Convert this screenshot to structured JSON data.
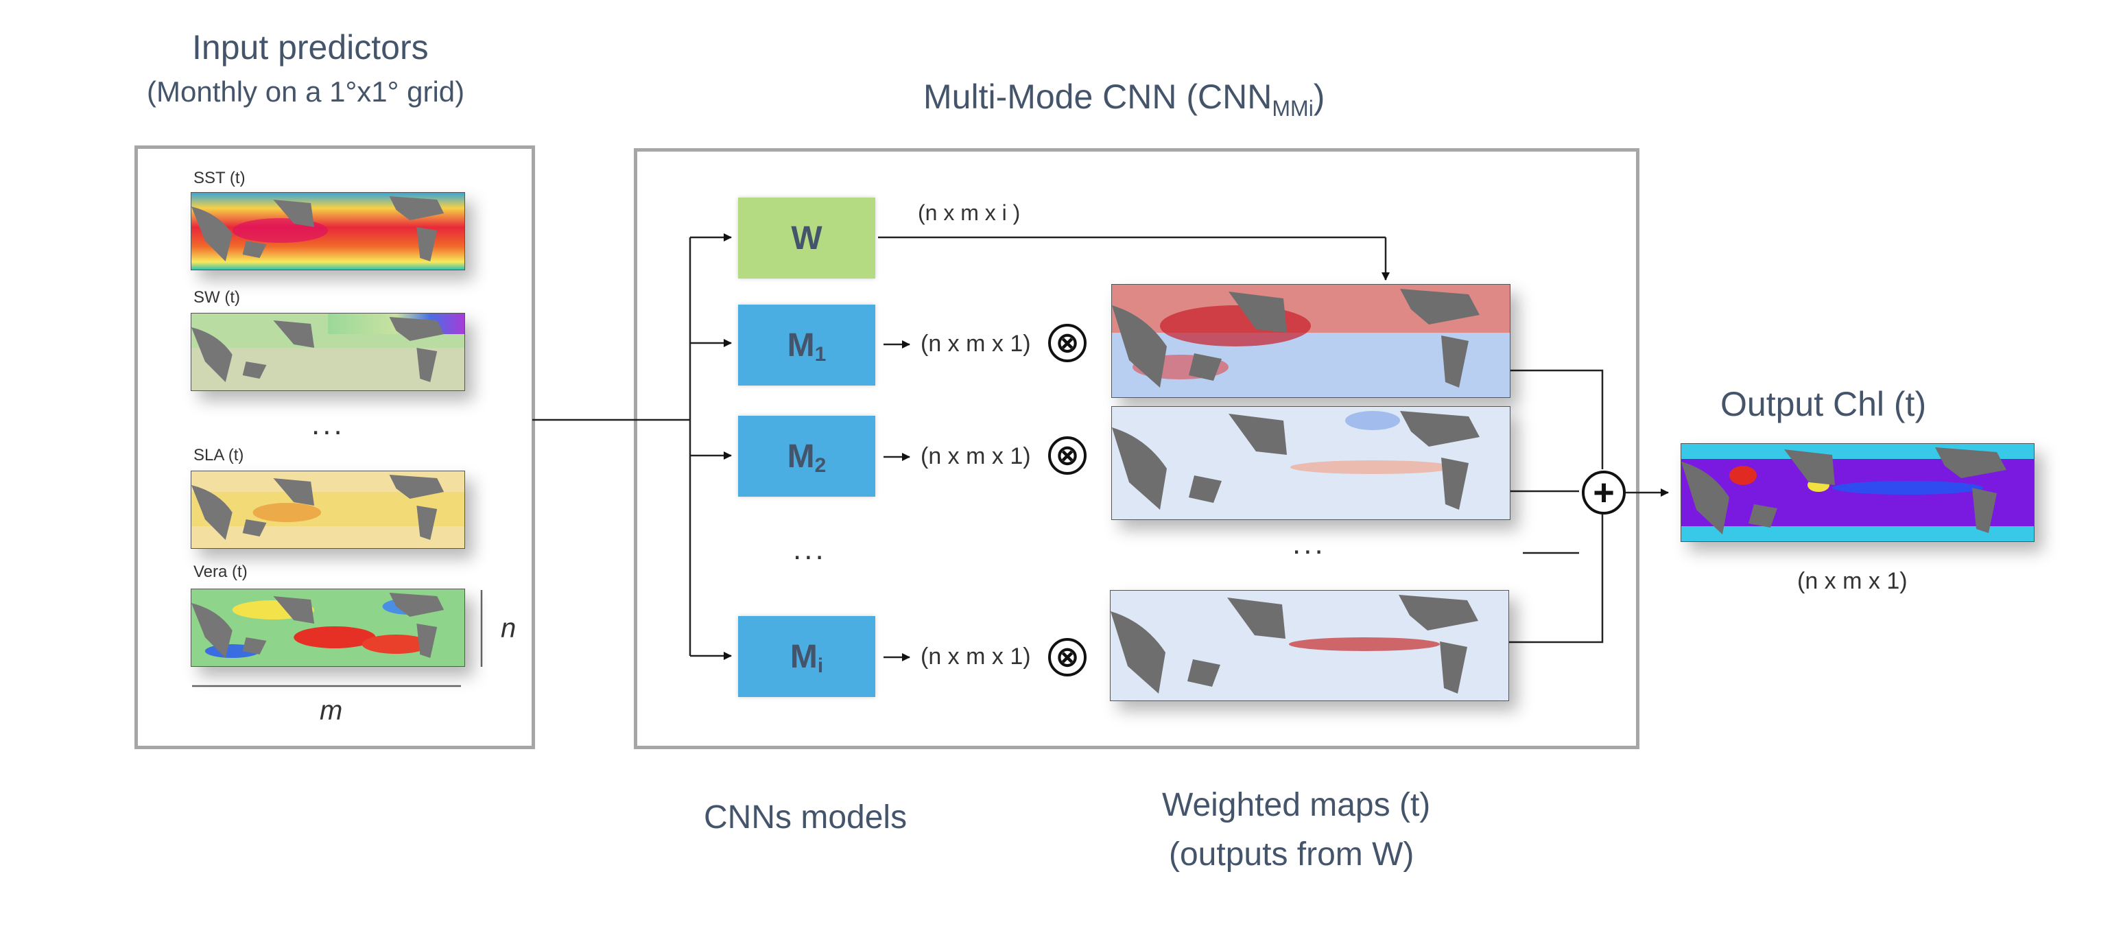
{
  "input_panel": {
    "title": "Input predictors",
    "subtitle": "(Monthly on a 1°x1° grid)",
    "maps": [
      {
        "label": "SST (t)",
        "palette": "sst"
      },
      {
        "label": "SW (t)",
        "palette": "sw"
      },
      {
        "label": "SLA (t)",
        "palette": "sla"
      },
      {
        "label": "Vera (t)",
        "palette": "vera"
      }
    ],
    "ellipsis": "...",
    "dim_n": "n",
    "dim_m": "m"
  },
  "cnn_panel": {
    "title_main": "Multi-Mode CNN (CNN",
    "title_sub": "MMi",
    "title_close": ")",
    "weight_block": {
      "label": "W",
      "color": "#b4db82"
    },
    "weight_dim": "(n x m x i )",
    "models": [
      {
        "label": "M",
        "sub": "1",
        "dim": "(n x m x 1)"
      },
      {
        "label": "M",
        "sub": "2",
        "dim": "(n x m x 1)"
      },
      {
        "label": "M",
        "sub": "i",
        "dim": "(n x m x 1)"
      }
    ],
    "model_color": "#4aaee3",
    "ellipsis_models": "...",
    "ellipsis_maps": "...",
    "multiply_symbol": "⊗",
    "sum_symbol": "+"
  },
  "output": {
    "title": "Output Chl (t)",
    "dim": "(n x m x 1)"
  },
  "captions": {
    "cnn_models": "CNNs models",
    "weighted_maps_line1": "Weighted maps (t)",
    "weighted_maps_line2": "(outputs from W)"
  }
}
